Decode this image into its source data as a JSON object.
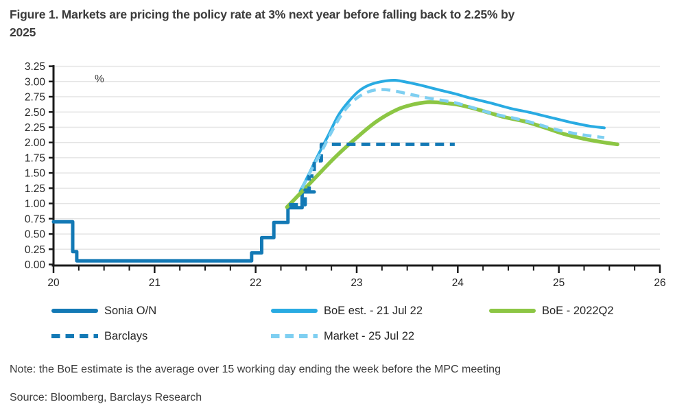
{
  "figure": {
    "title_line1": "Figure 1. Markets are pricing the policy rate at 3% next year before falling back to 2.25% by",
    "title_line2": "2025",
    "note": "Note: the BoE estimate is the average over 15 working day ending the week before the MPC meeting",
    "source": "Source: Bloomberg, Barclays Research"
  },
  "colors": {
    "dark_blue": "#1379B5",
    "light_blue": "#29ABE2",
    "pale_blue": "#7ECFF1",
    "green": "#8CC644",
    "grid": "#E4E4E4",
    "axis": "#1A1A1A",
    "text": "#262626"
  },
  "chart_data": {
    "type": "line",
    "title": "Figure 1. Markets are pricing the policy rate at 3% next year before falling back to 2.25% by 2025",
    "unit_label": "%",
    "xlabel": "",
    "ylabel": "%",
    "xlim": [
      20,
      26
    ],
    "ylim": [
      0,
      3.25
    ],
    "ytick_step": 0.25,
    "xticks": [
      20,
      21,
      22,
      23,
      24,
      25,
      26
    ],
    "x_minor_step": 0.25,
    "grid": "horizontal",
    "legend_position": "bottom",
    "series": [
      {
        "name": "Sonia O/N",
        "color": "#1379B5",
        "style": "solid",
        "width": 5,
        "smooth": false,
        "points": [
          [
            20.0,
            0.7
          ],
          [
            20.19,
            0.7
          ],
          [
            20.19,
            0.21
          ],
          [
            20.23,
            0.21
          ],
          [
            20.23,
            0.06
          ],
          [
            21.96,
            0.06
          ],
          [
            21.96,
            0.19
          ],
          [
            22.06,
            0.19
          ],
          [
            22.06,
            0.44
          ],
          [
            22.18,
            0.44
          ],
          [
            22.18,
            0.69
          ],
          [
            22.32,
            0.69
          ],
          [
            22.32,
            0.93
          ],
          [
            22.46,
            0.93
          ],
          [
            22.46,
            1.19
          ],
          [
            22.58,
            1.19
          ]
        ]
      },
      {
        "name": "BoE est. - 21 Jul 22",
        "color": "#29ABE2",
        "style": "solid",
        "width": 4,
        "smooth": true,
        "points": [
          [
            22.44,
            1.2
          ],
          [
            22.52,
            1.46
          ],
          [
            22.62,
            1.8
          ],
          [
            22.72,
            2.12
          ],
          [
            22.82,
            2.45
          ],
          [
            22.92,
            2.67
          ],
          [
            23.02,
            2.84
          ],
          [
            23.12,
            2.94
          ],
          [
            23.25,
            3.0
          ],
          [
            23.38,
            3.02
          ],
          [
            23.52,
            2.98
          ],
          [
            23.68,
            2.92
          ],
          [
            23.82,
            2.86
          ],
          [
            23.97,
            2.8
          ],
          [
            24.12,
            2.73
          ],
          [
            24.32,
            2.65
          ],
          [
            24.52,
            2.56
          ],
          [
            24.72,
            2.49
          ],
          [
            24.92,
            2.41
          ],
          [
            25.12,
            2.33
          ],
          [
            25.3,
            2.27
          ],
          [
            25.45,
            2.24
          ]
        ]
      },
      {
        "name": "BoE - 2022Q2",
        "color": "#8CC644",
        "style": "solid",
        "width": 5.5,
        "smooth": true,
        "points": [
          [
            22.31,
            0.94
          ],
          [
            22.45,
            1.18
          ],
          [
            22.6,
            1.44
          ],
          [
            22.8,
            1.78
          ],
          [
            23.0,
            2.08
          ],
          [
            23.2,
            2.35
          ],
          [
            23.4,
            2.54
          ],
          [
            23.55,
            2.62
          ],
          [
            23.7,
            2.66
          ],
          [
            23.85,
            2.65
          ],
          [
            24.0,
            2.62
          ],
          [
            24.2,
            2.54
          ],
          [
            24.45,
            2.42
          ],
          [
            24.65,
            2.35
          ],
          [
            24.85,
            2.25
          ],
          [
            25.05,
            2.14
          ],
          [
            25.25,
            2.06
          ],
          [
            25.45,
            2.0
          ],
          [
            25.58,
            1.97
          ]
        ]
      },
      {
        "name": "Barclays",
        "color": "#1379B5",
        "style": "dashed",
        "width": 5,
        "smooth": false,
        "points": [
          [
            22.33,
            0.98
          ],
          [
            22.49,
            0.98
          ],
          [
            22.49,
            1.22
          ],
          [
            22.53,
            1.22
          ],
          [
            22.53,
            1.45
          ],
          [
            22.58,
            1.45
          ],
          [
            22.58,
            1.7
          ],
          [
            22.65,
            1.7
          ],
          [
            22.65,
            1.97
          ],
          [
            23.97,
            1.97
          ]
        ]
      },
      {
        "name": "Market - 25 Jul 22",
        "color": "#7ECFF1",
        "style": "dashed",
        "width": 4.5,
        "smooth": true,
        "points": [
          [
            22.46,
            1.25
          ],
          [
            22.56,
            1.58
          ],
          [
            22.66,
            1.88
          ],
          [
            22.76,
            2.2
          ],
          [
            22.86,
            2.48
          ],
          [
            22.96,
            2.67
          ],
          [
            23.06,
            2.79
          ],
          [
            23.18,
            2.86
          ],
          [
            23.32,
            2.86
          ],
          [
            23.5,
            2.8
          ],
          [
            23.7,
            2.73
          ],
          [
            23.95,
            2.66
          ],
          [
            24.15,
            2.57
          ],
          [
            24.35,
            2.47
          ],
          [
            24.55,
            2.4
          ],
          [
            24.75,
            2.32
          ],
          [
            24.95,
            2.22
          ],
          [
            25.15,
            2.15
          ],
          [
            25.3,
            2.11
          ],
          [
            25.45,
            2.08
          ]
        ]
      }
    ],
    "legend_rows": [
      [
        "Sonia O/N",
        "BoE est. - 21 Jul 22",
        "BoE - 2022Q2"
      ],
      [
        "Barclays",
        "Market - 25 Jul 22"
      ]
    ]
  }
}
